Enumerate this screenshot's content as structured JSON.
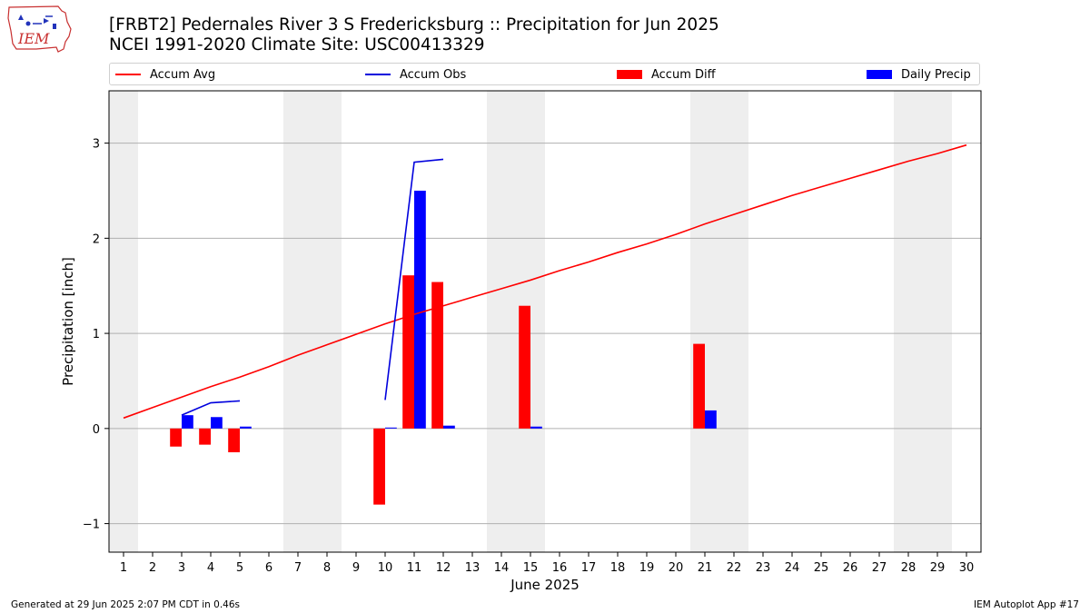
{
  "logo": {
    "text": "IEM"
  },
  "title": {
    "line1": "[FRBT2] Pedernales River 3 S Fredericksburg :: Precipitation for Jun 2025",
    "line2": "NCEI 1991-2020 Climate Site: USC00413329"
  },
  "legend": {
    "accum_avg": "Accum Avg",
    "accum_obs": "Accum Obs",
    "accum_diff": "Accum Diff",
    "daily_precip": "Daily Precip"
  },
  "colors": {
    "avg": "#ff0000",
    "obs": "#0000dd",
    "diff": "#ff0000",
    "daily": "#0000ff",
    "weekend": "#eeeeee",
    "grid": "#b0b0b0"
  },
  "chart_data": {
    "type": "bar",
    "xlabel": "June 2025",
    "ylabel": "Precipitation [inch]",
    "xlim": [
      0.5,
      30.5
    ],
    "ylim": [
      -1.3,
      3.55
    ],
    "yticks": [
      -1,
      0,
      1,
      2,
      3
    ],
    "ytick_labels": [
      "−1",
      "0",
      "1",
      "2",
      "3"
    ],
    "days": [
      1,
      2,
      3,
      4,
      5,
      6,
      7,
      8,
      9,
      10,
      11,
      12,
      13,
      14,
      15,
      16,
      17,
      18,
      19,
      20,
      21,
      22,
      23,
      24,
      25,
      26,
      27,
      28,
      29,
      30
    ],
    "weekend_spans": [
      [
        0.5,
        1.5
      ],
      [
        6.5,
        8.5
      ],
      [
        13.5,
        15.5
      ],
      [
        20.5,
        22.5
      ],
      [
        27.5,
        29.5
      ]
    ],
    "grid": "horizontal",
    "legend_position": "top",
    "series": [
      {
        "name": "Accum Avg",
        "type": "line",
        "x": [
          1,
          2,
          3,
          4,
          5,
          6,
          7,
          8,
          9,
          10,
          11,
          12,
          13,
          14,
          15,
          16,
          17,
          18,
          19,
          20,
          21,
          22,
          23,
          24,
          25,
          26,
          27,
          28,
          29,
          30
        ],
        "values": [
          0.11,
          0.22,
          0.33,
          0.44,
          0.54,
          0.65,
          0.77,
          0.88,
          0.99,
          1.1,
          1.2,
          1.29,
          1.38,
          1.47,
          1.56,
          1.66,
          1.75,
          1.85,
          1.94,
          2.04,
          2.15,
          2.25,
          2.35,
          2.45,
          2.54,
          2.63,
          2.72,
          2.81,
          2.89,
          2.98
        ]
      },
      {
        "name": "Accum Obs",
        "type": "line",
        "segments": [
          {
            "x": [
              3,
              4,
              5
            ],
            "values": [
              0.14,
              0.27,
              0.29
            ]
          },
          {
            "x": [
              10,
              11,
              12
            ],
            "values": [
              0.3,
              2.8,
              2.83
            ]
          }
        ]
      },
      {
        "name": "Accum Diff",
        "type": "bar",
        "x": [
          3,
          4,
          5,
          10,
          11,
          12,
          15,
          21
        ],
        "values": [
          -0.19,
          -0.17,
          -0.25,
          -0.8,
          1.61,
          1.54,
          1.29,
          0.89
        ]
      },
      {
        "name": "Daily Precip",
        "type": "bar",
        "x": [
          3,
          4,
          5,
          10,
          11,
          12,
          15,
          21
        ],
        "values": [
          0.14,
          0.12,
          0.02,
          0.01,
          2.5,
          0.03,
          0.02,
          0.19
        ]
      }
    ]
  },
  "footer": {
    "generated": "Generated at 29 Jun 2025 2:07 PM CDT in 0.46s",
    "app": "IEM Autoplot App #17"
  }
}
